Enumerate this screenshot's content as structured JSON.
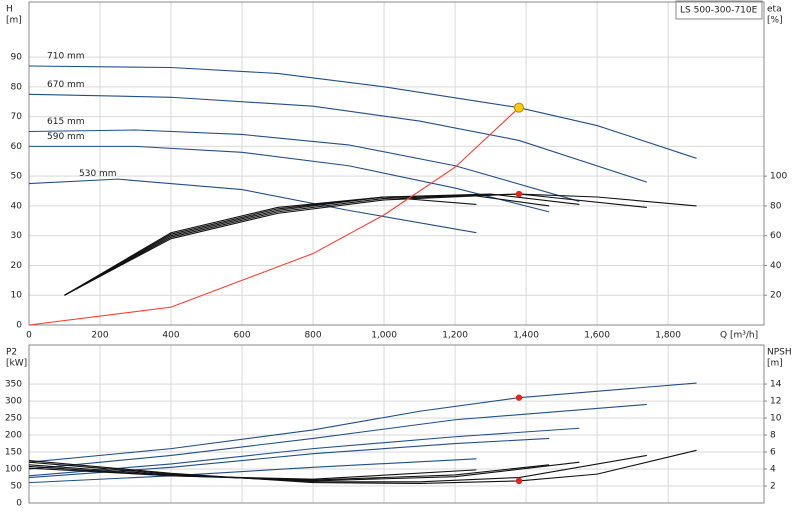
{
  "header": {
    "model": "LS 500-300-710E"
  },
  "chart_data": [
    {
      "type": "line",
      "xlabel": "Q [m³/h]",
      "ylabel": "H",
      "yunit": "[m]",
      "y2label": "eta",
      "y2unit": "[%]",
      "xlim": [
        0,
        2070
      ],
      "ylim": [
        0,
        108.5
      ],
      "y2lim": [
        0,
        217
      ],
      "grid": true,
      "xticks": [
        0,
        200,
        400,
        600,
        800,
        {
          "value": 1000,
          "label": "1,000"
        },
        {
          "value": 1200,
          "label": "1,200"
        },
        {
          "value": 1400,
          "label": "1,400"
        },
        {
          "value": 1600,
          "label": "1,600"
        },
        {
          "value": 1800,
          "label": "1,800"
        }
      ],
      "yticks": [
        0,
        10,
        20,
        30,
        40,
        50,
        60,
        70,
        80,
        90
      ],
      "y2ticks": [
        20,
        40,
        60,
        80,
        100
      ],
      "series": [
        {
          "name": "710 mm",
          "color": "#1f4e8c",
          "x": [
            0,
            400,
            700,
            1000,
            1380,
            1600,
            1880
          ],
          "values": [
            87,
            86.5,
            84.5,
            80,
            73,
            67,
            56
          ]
        },
        {
          "name": "670 mm",
          "color": "#1f4e8c",
          "x": [
            0,
            400,
            800,
            1100,
            1380,
            1740
          ],
          "values": [
            77.5,
            76.5,
            73.5,
            68.5,
            62,
            48
          ]
        },
        {
          "name": "615 mm",
          "color": "#1f4e8c",
          "x": [
            0,
            300,
            600,
            900,
            1200,
            1550
          ],
          "values": [
            65,
            65.5,
            64,
            60.5,
            53.5,
            41.5
          ]
        },
        {
          "name": "590 mm",
          "color": "#1f4e8c",
          "x": [
            0,
            300,
            600,
            900,
            1200,
            1465
          ],
          "values": [
            60,
            60,
            58,
            53.5,
            46,
            38
          ]
        },
        {
          "name": "530 mm",
          "color": "#1f4e8c",
          "x": [
            0,
            250,
            600,
            900,
            1260
          ],
          "values": [
            47.5,
            49,
            45.5,
            38.5,
            31
          ]
        },
        {
          "color": "#111111",
          "axis": "y2",
          "x": [
            100,
            400,
            700,
            1000,
            1380,
            1600,
            1880
          ],
          "values": [
            20,
            58,
            75,
            84,
            88,
            86,
            80
          ]
        },
        {
          "color": "#111111",
          "axis": "y2",
          "x": [
            100,
            400,
            700,
            1000,
            1380,
            1740
          ],
          "values": [
            20,
            59,
            76,
            85,
            88,
            79
          ]
        },
        {
          "color": "#111111",
          "axis": "y2",
          "x": [
            100,
            400,
            700,
            1000,
            1300,
            1550
          ],
          "values": [
            20,
            60,
            77,
            86,
            88,
            81
          ]
        },
        {
          "color": "#111111",
          "axis": "y2",
          "x": [
            100,
            400,
            700,
            1000,
            1250,
            1465
          ],
          "values": [
            20,
            61,
            78,
            86,
            87,
            80
          ]
        },
        {
          "color": "#111111",
          "axis": "y2",
          "x": [
            100,
            400,
            700,
            1000,
            1260
          ],
          "values": [
            20,
            62,
            79,
            86,
            81
          ]
        },
        {
          "color": "#ff3b30",
          "x": [
            0,
            400,
            800,
            1000,
            1200,
            1380
          ],
          "values": [
            0,
            6,
            24,
            37,
            53,
            73
          ]
        }
      ],
      "markers": [
        {
          "x": 1380,
          "y": 73,
          "color": "#ffcc00"
        },
        {
          "x": 1380,
          "y": 88,
          "axis": "y2",
          "color": "#e8221b"
        }
      ]
    },
    {
      "type": "line",
      "ylabel": "P2",
      "yunit": "[kW]",
      "y2label": "NPSH",
      "y2unit": "[m]",
      "xlim": [
        0,
        2070
      ],
      "ylim": [
        0,
        465
      ],
      "y2lim": [
        0,
        18.6
      ],
      "grid": true,
      "yticks": [
        0,
        50,
        100,
        150,
        200,
        250,
        300,
        350
      ],
      "y2ticks": [
        2,
        4,
        6,
        8,
        10,
        12,
        14
      ],
      "series": [
        {
          "color": "#1f4e8c",
          "x": [
            0,
            400,
            800,
            1100,
            1380,
            1880
          ],
          "values": [
            120,
            160,
            215,
            270,
            310,
            353
          ]
        },
        {
          "color": "#1f4e8c",
          "x": [
            0,
            400,
            800,
            1200,
            1740
          ],
          "values": [
            100,
            140,
            190,
            245,
            290
          ]
        },
        {
          "color": "#1f4e8c",
          "x": [
            0,
            400,
            800,
            1200,
            1550
          ],
          "values": [
            80,
            115,
            160,
            195,
            220
          ]
        },
        {
          "color": "#1f4e8c",
          "x": [
            0,
            400,
            800,
            1200,
            1465
          ],
          "values": [
            75,
            105,
            145,
            175,
            190
          ]
        },
        {
          "color": "#1f4e8c",
          "x": [
            0,
            400,
            800,
            1260
          ],
          "values": [
            60,
            80,
            105,
            130
          ]
        },
        {
          "color": "#111111",
          "axis": "y2",
          "x": [
            0,
            400,
            800,
            1100,
            1380,
            1600,
            1880
          ],
          "values": [
            5,
            3.5,
            2.4,
            2.3,
            2.6,
            3.4,
            6.2
          ]
        },
        {
          "color": "#111111",
          "axis": "y2",
          "x": [
            0,
            400,
            800,
            1100,
            1380,
            1740
          ],
          "values": [
            4.8,
            3.4,
            2.5,
            2.5,
            3,
            5.6
          ]
        },
        {
          "color": "#111111",
          "axis": "y2",
          "x": [
            0,
            400,
            800,
            1200,
            1550
          ],
          "values": [
            4.5,
            3.3,
            2.6,
            3.1,
            4.8
          ]
        },
        {
          "color": "#111111",
          "axis": "y2",
          "x": [
            0,
            400,
            800,
            1200,
            1465
          ],
          "values": [
            4.3,
            3.2,
            2.7,
            3.3,
            4.5
          ]
        },
        {
          "color": "#111111",
          "axis": "y2",
          "x": [
            0,
            400,
            800,
            1260
          ],
          "values": [
            4.1,
            3.2,
            2.8,
            3.9
          ]
        }
      ],
      "markers": [
        {
          "x": 1380,
          "y": 310,
          "color": "#e8221b"
        },
        {
          "x": 1380,
          "y": 2.6,
          "axis": "y2",
          "color": "#e8221b"
        }
      ]
    }
  ]
}
